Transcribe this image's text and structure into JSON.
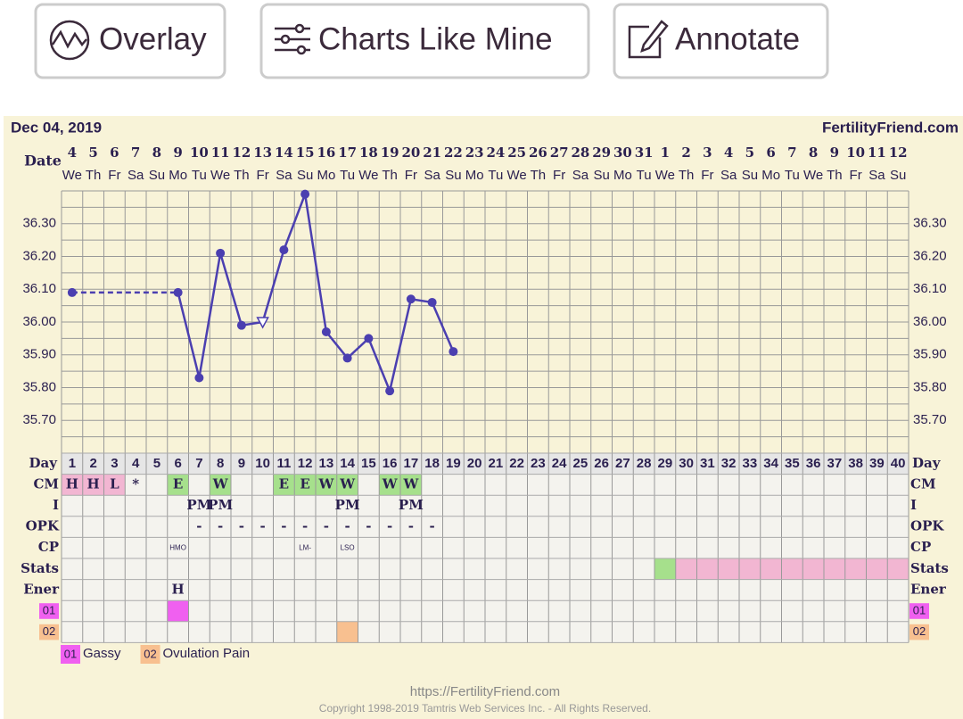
{
  "buttons": [
    {
      "label": "Overlay"
    },
    {
      "label": "Charts Like Mine"
    },
    {
      "label": "Annotate"
    }
  ],
  "header": {
    "date": "Dec 04, 2019",
    "site": "FertilityFriend.com",
    "date_label": "Date"
  },
  "chart_data": {
    "type": "line",
    "categories": [
      1,
      2,
      3,
      4,
      5,
      6,
      7,
      8,
      9,
      10,
      11,
      12,
      13,
      14,
      15,
      16,
      17,
      18,
      19,
      20,
      21,
      22,
      23,
      24,
      25,
      26,
      27,
      28,
      29,
      30,
      31,
      32,
      33,
      34,
      35,
      36,
      37,
      38,
      39,
      40
    ],
    "dates": [
      4,
      5,
      6,
      7,
      8,
      9,
      10,
      11,
      12,
      13,
      14,
      15,
      16,
      17,
      18,
      19,
      20,
      21,
      22,
      23,
      24,
      25,
      26,
      27,
      28,
      29,
      30,
      31,
      1,
      2,
      3,
      4,
      5,
      6,
      7,
      8,
      9,
      10,
      11,
      12
    ],
    "weekdays": [
      "We",
      "Th",
      "Fr",
      "Sa",
      "Su",
      "Mo",
      "Tu",
      "We",
      "Th",
      "Fr",
      "Sa",
      "Su",
      "Mo",
      "Tu",
      "We",
      "Th",
      "Fr",
      "Sa",
      "Su",
      "Mo",
      "Tu",
      "We",
      "Th",
      "Fr",
      "Sa",
      "Su",
      "Mo",
      "Tu",
      "We",
      "Th",
      "Fr",
      "Sa",
      "Su",
      "Mo",
      "Tu",
      "We",
      "Th",
      "Fr",
      "Sa",
      "Su"
    ],
    "series": [
      {
        "color": "#4b3fb0",
        "values": [
          36.09,
          null,
          null,
          null,
          null,
          36.09,
          35.83,
          36.21,
          35.99,
          36.0,
          36.22,
          36.39,
          35.97,
          35.89,
          35.95,
          35.79,
          36.07,
          36.06,
          35.91,
          null,
          null,
          null,
          null,
          null,
          null,
          null,
          null,
          null,
          null,
          null,
          null,
          null,
          null,
          null,
          null,
          null,
          null,
          null,
          null,
          null
        ],
        "markers": [
          "dot",
          null,
          null,
          null,
          null,
          "dot",
          "dot",
          "dot",
          "dot",
          "triangle",
          "dot",
          "dot",
          "dot",
          "dot",
          "dot",
          "dot",
          "dot",
          "dot",
          "dot",
          null,
          null,
          null,
          null,
          null,
          null,
          null,
          null,
          null,
          null,
          null,
          null,
          null,
          null,
          null,
          null,
          null,
          null,
          null,
          null,
          null
        ]
      }
    ],
    "gap_style": "dashed",
    "ylim": [
      35.6,
      36.4
    ],
    "yticks": [
      {
        "value": 35.7,
        "label": "35.70"
      },
      {
        "value": 35.8,
        "label": "35.80"
      },
      {
        "value": 35.9,
        "label": "35.90"
      },
      {
        "value": 36.0,
        "label": "36.00"
      },
      {
        "value": 36.1,
        "label": "36.10"
      },
      {
        "value": 36.2,
        "label": "36.20"
      },
      {
        "value": 36.3,
        "label": "36.30"
      }
    ],
    "ygrid": [
      35.6,
      35.65,
      35.7,
      35.75,
      35.8,
      35.85,
      35.9,
      35.95,
      36.0,
      36.05,
      36.1,
      36.15,
      36.2,
      36.25,
      36.3,
      36.35,
      36.4
    ]
  },
  "day_label": "Day",
  "rows": [
    {
      "label": "CM",
      "cells": [
        "H",
        "H",
        "L",
        "*",
        null,
        "E",
        null,
        "W",
        null,
        null,
        "E",
        "E",
        "W",
        "W",
        null,
        "W",
        "W",
        null,
        null,
        null,
        null,
        null,
        null,
        null,
        null,
        null,
        null,
        null,
        null,
        null,
        null,
        null,
        null,
        null,
        null,
        null,
        null,
        null,
        null,
        null
      ],
      "fills": [
        "#f2b6d2",
        "#f2b6d2",
        "#f2b6d2",
        null,
        null,
        "#a6e08c",
        null,
        "#a6e08c",
        null,
        null,
        "#a6e08c",
        "#a6e08c",
        "#a6e08c",
        "#a6e08c",
        null,
        "#a6e08c",
        "#a6e08c",
        null,
        null,
        null,
        null,
        null,
        null,
        null,
        null,
        null,
        null,
        null,
        null,
        null,
        null,
        null,
        null,
        null,
        null,
        null,
        null,
        null,
        null,
        null
      ]
    },
    {
      "label": "I",
      "cells": [
        null,
        null,
        null,
        null,
        null,
        null,
        "PM",
        "PM",
        null,
        null,
        null,
        null,
        null,
        "PM",
        null,
        null,
        "PM",
        null,
        null,
        null,
        null,
        null,
        null,
        null,
        null,
        null,
        null,
        null,
        null,
        null,
        null,
        null,
        null,
        null,
        null,
        null,
        null,
        null,
        null,
        null
      ]
    },
    {
      "label": "OPK",
      "cells": [
        null,
        null,
        null,
        null,
        null,
        null,
        "-",
        "-",
        "-",
        "-",
        "-",
        "-",
        "-",
        "-",
        "-",
        "-",
        "-",
        "-",
        null,
        null,
        null,
        null,
        null,
        null,
        null,
        null,
        null,
        null,
        null,
        null,
        null,
        null,
        null,
        null,
        null,
        null,
        null,
        null,
        null,
        null
      ]
    },
    {
      "label": "CP",
      "small": true,
      "cells": [
        null,
        null,
        null,
        null,
        null,
        "HMO",
        null,
        null,
        null,
        null,
        null,
        "LM-",
        null,
        "LSO",
        null,
        null,
        null,
        null,
        null,
        null,
        null,
        null,
        null,
        null,
        null,
        null,
        null,
        null,
        null,
        null,
        null,
        null,
        null,
        null,
        null,
        null,
        null,
        null,
        null,
        null
      ]
    },
    {
      "label": "Stats",
      "fills": [
        null,
        null,
        null,
        null,
        null,
        null,
        null,
        null,
        null,
        null,
        null,
        null,
        null,
        null,
        null,
        null,
        null,
        null,
        null,
        null,
        null,
        null,
        null,
        null,
        null,
        null,
        null,
        null,
        "#a6e08c",
        "#f2b6d2",
        "#f2b6d2",
        "#f2b6d2",
        "#f2b6d2",
        "#f2b6d2",
        "#f2b6d2",
        "#f2b6d2",
        "#f2b6d2",
        "#f2b6d2",
        "#f2b6d2",
        "#f2b6d2"
      ]
    },
    {
      "label": "Ener",
      "cells": [
        null,
        null,
        null,
        null,
        null,
        "H",
        null,
        null,
        null,
        null,
        null,
        null,
        null,
        null,
        null,
        null,
        null,
        null,
        null,
        null,
        null,
        null,
        null,
        null,
        null,
        null,
        null,
        null,
        null,
        null,
        null,
        null,
        null,
        null,
        null,
        null,
        null,
        null,
        null,
        null
      ]
    },
    {
      "label": "01",
      "label_color": "#f060f0",
      "fills": [
        null,
        null,
        null,
        null,
        null,
        "#f060f0",
        null,
        null,
        null,
        null,
        null,
        null,
        null,
        null,
        null,
        null,
        null,
        null,
        null,
        null,
        null,
        null,
        null,
        null,
        null,
        null,
        null,
        null,
        null,
        null,
        null,
        null,
        null,
        null,
        null,
        null,
        null,
        null,
        null,
        null
      ]
    },
    {
      "label": "02",
      "label_color": "#f8c090",
      "fills": [
        null,
        null,
        null,
        null,
        null,
        null,
        null,
        null,
        null,
        null,
        null,
        null,
        null,
        "#f8c090",
        null,
        null,
        null,
        null,
        null,
        null,
        null,
        null,
        null,
        null,
        null,
        null,
        null,
        null,
        null,
        null,
        null,
        null,
        null,
        null,
        null,
        null,
        null,
        null,
        null,
        null
      ]
    }
  ],
  "legend": [
    {
      "code": "01",
      "text": "Gassy",
      "color": "#f060f0"
    },
    {
      "code": "02",
      "text": "Ovulation Pain",
      "color": "#f8c090"
    }
  ],
  "footer": {
    "url": "https://FertilityFriend.com",
    "copyright": "Copyright 1998-2019 Tamtris Web Services Inc. - All Rights Reserved."
  }
}
